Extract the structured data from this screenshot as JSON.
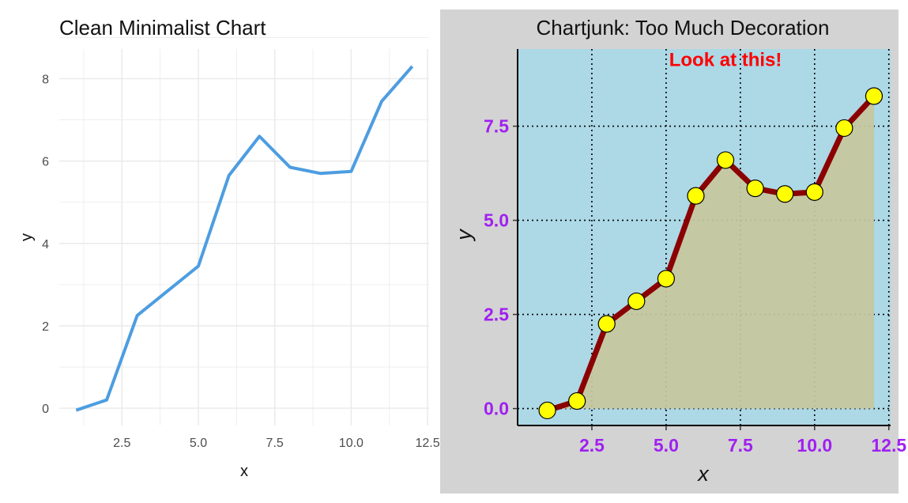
{
  "colors": {
    "clean_line": "#4d9de0",
    "clean_grid": "#ebebeb",
    "junk_panel_bg": "#d3d3d3",
    "junk_plot_bg": "#add8e6",
    "junk_line": "#8b0000",
    "junk_point_fill": "#ffff00",
    "junk_area_fill": "#c5c89e",
    "junk_tick_color": "#a020f0",
    "annotation_color": "#ff0000"
  },
  "chart_data": [
    {
      "type": "line",
      "title": "Clean Minimalist Chart",
      "xlabel": "x",
      "ylabel": "y",
      "x": [
        1,
        2,
        3,
        4,
        5,
        6,
        7,
        8,
        9,
        10,
        11,
        12
      ],
      "series": [
        {
          "values": [
            -0.05,
            0.2,
            2.25,
            2.85,
            3.45,
            5.65,
            6.6,
            5.85,
            5.7,
            5.75,
            7.45,
            8.3
          ]
        }
      ],
      "xlim": [
        0.45,
        12.55
      ],
      "ylim": [
        -0.42,
        8.72
      ],
      "xticks": [
        2.5,
        5.0,
        7.5,
        10.0,
        12.5
      ],
      "xtick_labels": [
        "2.5",
        "5.0",
        "7.5",
        "10.0",
        "12.5"
      ],
      "yticks": [
        0,
        2,
        4,
        6,
        8
      ],
      "ytick_labels": [
        "0",
        "2",
        "4",
        "6",
        "8"
      ],
      "grid": true,
      "legend": "none"
    },
    {
      "type": "area",
      "title": "Chartjunk: Too Much Decoration",
      "xlabel": "x",
      "ylabel": "y",
      "annotation": "Look at this!",
      "annotation_at": {
        "x": 7.0,
        "y": 9.1
      },
      "x": [
        1,
        2,
        3,
        4,
        5,
        6,
        7,
        8,
        9,
        10,
        11,
        12
      ],
      "series": [
        {
          "values": [
            -0.05,
            0.2,
            2.25,
            2.85,
            3.45,
            5.65,
            6.6,
            5.85,
            5.7,
            5.75,
            7.45,
            8.3
          ]
        }
      ],
      "xlim": [
        0.0,
        12.56
      ],
      "ylim": [
        -0.45,
        9.55
      ],
      "xticks": [
        2.5,
        5.0,
        7.5,
        10.0,
        12.5
      ],
      "xtick_labels": [
        "2.5",
        "5.0",
        "7.5",
        "10.0",
        "12.5"
      ],
      "yticks": [
        0.0,
        2.5,
        5.0,
        7.5
      ],
      "ytick_labels": [
        "0.0",
        "2.5",
        "5.0",
        "7.5"
      ],
      "grid": true,
      "legend": "none"
    }
  ]
}
